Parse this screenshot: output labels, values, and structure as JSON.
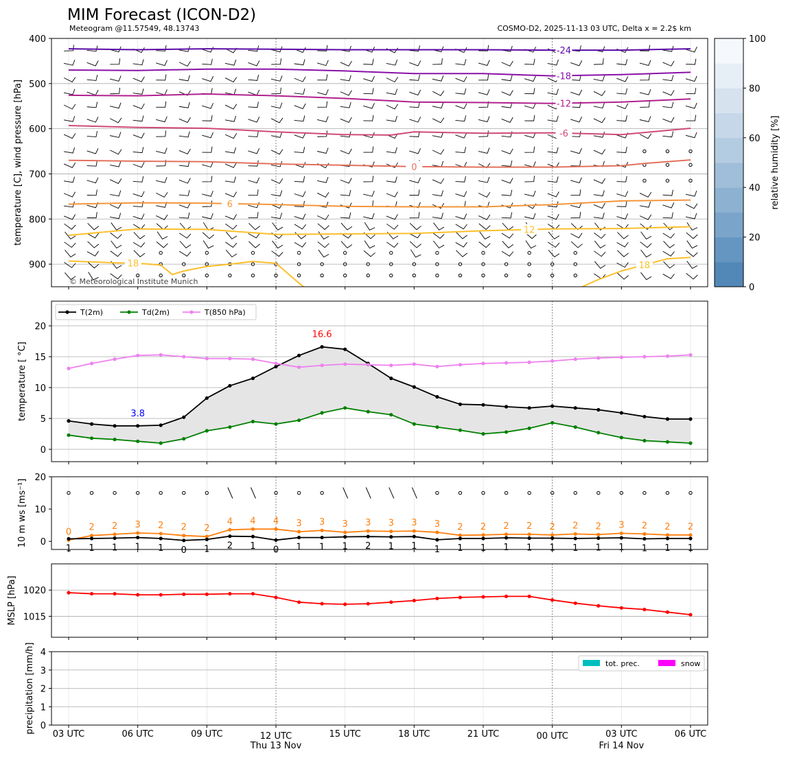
{
  "header": {
    "title": "MIM Forecast (ICON-D2)",
    "subtitle_left": "Meteogram @11.57549, 48.13743",
    "subtitle_right": "COSMO-D2, 2025-11-13 03 UTC, Delta x = 2.2$ km",
    "copyright": "© Meteorological Institute Munich"
  },
  "time_axis": {
    "tick_labels": [
      "03 UTC",
      "06 UTC",
      "09 UTC",
      "12 UTC",
      "15 UTC",
      "18 UTC",
      "21 UTC",
      "00 UTC",
      "03 UTC",
      "06 UTC"
    ],
    "date_labels": [
      "Thu 13 Nov",
      "Fri 14 Nov"
    ]
  },
  "colors": {
    "t2m": "#000000",
    "td2m": "#008000",
    "t850": "#ee82ee",
    "wind10": "#ff7f0e",
    "mslp": "#ff0000",
    "tot_prec": "#00bfbf",
    "snow": "#ff00ff",
    "label_max": "#ff0000",
    "label_min": "#0000ff"
  },
  "chart_data": [
    {
      "type": "heatmap",
      "name": "upper-air",
      "ylabel": "temperature [C], wind pressure [hPa]",
      "ylim": [
        950,
        400
      ],
      "yticks": [
        400,
        500,
        600,
        700,
        800,
        900
      ],
      "xrange_hours": [
        0,
        27
      ],
      "colorbar": {
        "label": "relative humidity [%]",
        "ticks": [
          0,
          20,
          40,
          60,
          80,
          100
        ]
      },
      "isotherms": [
        {
          "label": "-24",
          "color": "#5b0aa8",
          "points": [
            [
              0,
              423
            ],
            [
              3,
              425
            ],
            [
              6,
              423
            ],
            [
              9,
              424
            ],
            [
              12,
              425
            ],
            [
              15,
              425
            ],
            [
              18,
              425
            ],
            [
              21,
              426
            ],
            [
              24,
              426
            ],
            [
              27,
              423
            ]
          ]
        },
        {
          "label": "-18",
          "color": "#8a10a8",
          "points": [
            [
              0,
              470
            ],
            [
              3,
              471
            ],
            [
              6,
              468
            ],
            [
              9,
              468
            ],
            [
              12,
              472
            ],
            [
              15,
              478
            ],
            [
              18,
              478
            ],
            [
              21,
              483
            ],
            [
              24,
              480
            ],
            [
              27,
              475
            ]
          ]
        },
        {
          "label": "-12",
          "color": "#b0208e",
          "points": [
            [
              0,
              526
            ],
            [
              3,
              527
            ],
            [
              6,
              523
            ],
            [
              9,
              527
            ],
            [
              12,
              533
            ],
            [
              15,
              541
            ],
            [
              18,
              542
            ],
            [
              21,
              544
            ],
            [
              24,
              541
            ],
            [
              27,
              534
            ]
          ]
        },
        {
          "label": "-6",
          "color": "#cf4a78",
          "points": [
            [
              0,
              593
            ],
            [
              3,
              597
            ],
            [
              6,
              599
            ],
            [
              9,
              607
            ],
            [
              12,
              613
            ],
            [
              14,
              614
            ],
            [
              15,
              607
            ],
            [
              18,
              610
            ],
            [
              21,
              609
            ],
            [
              24,
              613
            ],
            [
              27,
              599
            ]
          ]
        },
        {
          "label": "0",
          "color": "#e3705c",
          "points": [
            [
              0,
              670
            ],
            [
              3,
              672
            ],
            [
              6,
              673
            ],
            [
              9,
              678
            ],
            [
              12,
              681
            ],
            [
              15,
              684
            ],
            [
              18,
              685
            ],
            [
              21,
              685
            ],
            [
              24,
              682
            ],
            [
              25,
              677
            ],
            [
              27,
              669
            ]
          ]
        },
        {
          "label": "6",
          "color": "#f5953a",
          "points": [
            [
              0,
              767
            ],
            [
              3,
              764
            ],
            [
              6,
              765
            ],
            [
              9,
              768
            ],
            [
              12,
              772
            ],
            [
              15,
              773
            ],
            [
              18,
              773
            ],
            [
              21,
              768
            ],
            [
              24,
              760
            ],
            [
              27,
              758
            ]
          ]
        },
        {
          "label": "12",
          "color": "#fcbf2a",
          "points": [
            [
              0,
              836
            ],
            [
              3,
              822
            ],
            [
              6,
              823
            ],
            [
              9,
              834
            ],
            [
              12,
              833
            ],
            [
              15,
              832
            ],
            [
              18,
              826
            ],
            [
              21,
              822
            ],
            [
              24,
              821
            ],
            [
              27,
              817
            ]
          ]
        },
        {
          "label": "18",
          "color": "#fcbf2a",
          "points": [
            [
              0,
              893
            ],
            [
              2,
              897
            ],
            [
              3,
              898
            ],
            [
              4,
              902
            ],
            [
              4.5,
              923
            ],
            [
              5,
              915
            ],
            [
              6,
              905
            ],
            [
              7,
              900
            ],
            [
              8,
              894
            ],
            [
              9,
              898
            ],
            [
              9.5,
              920
            ],
            [
              10,
              942
            ],
            [
              10.2,
              950
            ]
          ]
        },
        {
          "label": "18",
          "color": "#fcbf2a",
          "points": [
            [
              22.3,
              950
            ],
            [
              23,
              934
            ],
            [
              24,
              915
            ],
            [
              26,
              888
            ],
            [
              27,
              885
            ]
          ]
        }
      ]
    },
    {
      "type": "line",
      "name": "surface-temperature",
      "ylabel": "temperature [$^\\circ$C]",
      "ylim": [
        -2,
        24
      ],
      "yticks": [
        0,
        5,
        10,
        15,
        20
      ],
      "legend": {
        "placement": "upper-left",
        "entries": [
          "T(2m)",
          "Td(2m)",
          "T(850 hPa)"
        ]
      },
      "x_hours": [
        0,
        1,
        2,
        3,
        4,
        5,
        6,
        7,
        8,
        9,
        10,
        11,
        12,
        13,
        14,
        15,
        16,
        17,
        18,
        19,
        20,
        21,
        22,
        23,
        24,
        25,
        26,
        27
      ],
      "series": [
        {
          "name": "T(2m)",
          "values": [
            4.6,
            4.1,
            3.8,
            3.8,
            3.9,
            5.2,
            8.3,
            10.3,
            11.5,
            13.4,
            15.2,
            16.6,
            16.2,
            13.9,
            11.5,
            10.1,
            8.5,
            7.3,
            7.2,
            6.9,
            6.7,
            7.0,
            6.7,
            6.4,
            5.9,
            5.3,
            4.9,
            4.9
          ]
        },
        {
          "name": "Td(2m)",
          "values": [
            2.3,
            1.8,
            1.6,
            1.3,
            1.0,
            1.7,
            3.0,
            3.6,
            4.5,
            4.1,
            4.7,
            5.9,
            6.7,
            6.1,
            5.6,
            4.1,
            3.6,
            3.1,
            2.5,
            2.8,
            3.4,
            4.3,
            3.6,
            2.7,
            1.9,
            1.4,
            1.2,
            1.0
          ]
        },
        {
          "name": "T(850 hPa)",
          "values": [
            13.1,
            13.9,
            14.6,
            15.2,
            15.3,
            15.0,
            14.7,
            14.7,
            14.6,
            13.9,
            13.3,
            13.6,
            13.8,
            13.7,
            13.6,
            13.8,
            13.4,
            13.7,
            13.9,
            14.0,
            14.1,
            14.3,
            14.6,
            14.8,
            14.9,
            15.0,
            15.1,
            15.3
          ]
        }
      ],
      "annotations": [
        {
          "text": "16.6",
          "x": 11,
          "y": 16.6,
          "kind": "max"
        },
        {
          "text": "3.8",
          "x": 3,
          "y": 3.8,
          "kind": "min"
        }
      ]
    },
    {
      "type": "line",
      "name": "surface-wind",
      "ylabel": "10 m ws [ms$^{-1}$]",
      "ylim": [
        -2.5,
        20
      ],
      "yticks": [
        0,
        10,
        20
      ],
      "x_hours": [
        0,
        1,
        2,
        3,
        4,
        5,
        6,
        7,
        8,
        9,
        10,
        11,
        12,
        13,
        14,
        15,
        16,
        17,
        18,
        19,
        20,
        21,
        22,
        23,
        24,
        25,
        26,
        27
      ],
      "series": [
        {
          "name": "gust",
          "values": [
            0.4,
            1.8,
            2.2,
            2.6,
            2.4,
            1.8,
            1.5,
            3.6,
            3.8,
            3.8,
            3.0,
            3.4,
            2.8,
            3.2,
            3.1,
            3.2,
            2.8,
            1.9,
            2.0,
            2.2,
            2.2,
            2.0,
            2.3,
            2.1,
            2.5,
            2.3,
            2.0,
            2.0
          ],
          "labels": [
            "0",
            "2",
            "2",
            "3",
            "2",
            "2",
            "2",
            "4",
            "4",
            "4",
            "3",
            "3",
            "3",
            "3",
            "3",
            "3",
            "3",
            "2",
            "2",
            "2",
            "2",
            "2",
            "2",
            "2",
            "3",
            "2",
            "2",
            "2"
          ]
        },
        {
          "name": "mean",
          "values": [
            0.8,
            0.9,
            1.0,
            1.2,
            0.9,
            0.3,
            0.6,
            1.6,
            1.5,
            0.4,
            1.2,
            1.2,
            1.4,
            1.5,
            1.4,
            1.5,
            0.5,
            0.9,
            0.9,
            1.1,
            1.0,
            1.0,
            0.9,
            1.0,
            1.1,
            0.8,
            0.9,
            0.9
          ],
          "labels": [
            "1",
            "1",
            "1",
            "1",
            "1",
            "0",
            "1",
            "2",
            "1",
            "0",
            "1",
            "1",
            "1",
            "2",
            "1",
            "1",
            "1",
            "1",
            "1",
            "1",
            "1",
            "1",
            "1",
            "1",
            "1",
            "1",
            "1",
            "1"
          ]
        }
      ]
    },
    {
      "type": "line",
      "name": "mslp",
      "ylabel": "MSLP [hPa]",
      "ylim": [
        1011,
        1025
      ],
      "yticks": [
        1015,
        1020
      ],
      "x_hours": [
        0,
        1,
        2,
        3,
        4,
        5,
        6,
        7,
        8,
        9,
        10,
        11,
        12,
        13,
        14,
        15,
        16,
        17,
        18,
        19,
        20,
        21,
        22,
        23,
        24,
        25,
        26,
        27
      ],
      "series": [
        {
          "name": "MSLP",
          "values": [
            1019.5,
            1019.3,
            1019.3,
            1019.1,
            1019.1,
            1019.2,
            1019.2,
            1019.3,
            1019.3,
            1018.6,
            1017.7,
            1017.4,
            1017.3,
            1017.4,
            1017.7,
            1018.0,
            1018.4,
            1018.6,
            1018.7,
            1018.8,
            1018.8,
            1018.1,
            1017.5,
            1017.0,
            1016.6,
            1016.3,
            1015.8,
            1015.3
          ]
        }
      ]
    },
    {
      "type": "bar",
      "name": "precipitation",
      "ylabel": "precipitation [mm/h]",
      "ylim": [
        0,
        4
      ],
      "yticks": [
        0,
        1,
        2,
        3,
        4
      ],
      "legend": {
        "placement": "upper-right",
        "entries": [
          "tot. prec.",
          "snow"
        ]
      },
      "x_hours": [
        0,
        1,
        2,
        3,
        4,
        5,
        6,
        7,
        8,
        9,
        10,
        11,
        12,
        13,
        14,
        15,
        16,
        17,
        18,
        19,
        20,
        21,
        22,
        23,
        24,
        25,
        26,
        27
      ],
      "series": [
        {
          "name": "tot. prec.",
          "values": [
            0,
            0,
            0,
            0,
            0,
            0,
            0,
            0,
            0,
            0,
            0,
            0,
            0,
            0,
            0,
            0,
            0,
            0,
            0,
            0,
            0,
            0,
            0,
            0,
            0,
            0,
            0,
            0
          ]
        },
        {
          "name": "snow",
          "values": [
            0,
            0,
            0,
            0,
            0,
            0,
            0,
            0,
            0,
            0,
            0,
            0,
            0,
            0,
            0,
            0,
            0,
            0,
            0,
            0,
            0,
            0,
            0,
            0,
            0,
            0,
            0,
            0
          ]
        }
      ]
    }
  ]
}
